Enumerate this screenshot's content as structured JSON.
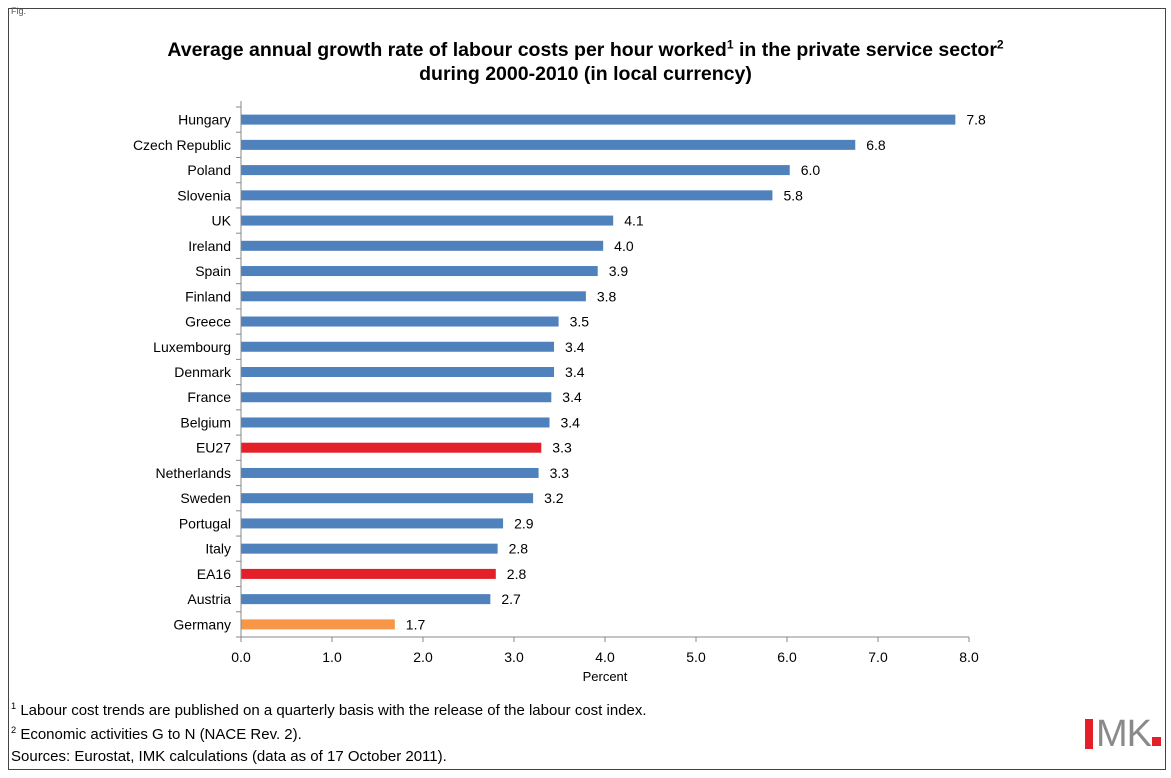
{
  "corner_label": "Fig.",
  "title_line1_pre": "Average annual growth rate of labour costs per hour worked",
  "title_sup1": "1",
  "title_line1_mid": " in the private service sector",
  "title_sup2": "2",
  "title_line2": "during 2000-2010 (in local currency)",
  "chart_data": {
    "type": "bar",
    "orientation": "horizontal",
    "categories": [
      "Hungary",
      "Czech Republic",
      "Poland",
      "Slovenia",
      "UK",
      "Ireland",
      "Spain",
      "Finland",
      "Greece",
      "Luxembourg",
      "Denmark",
      "France",
      "Belgium",
      "EU27",
      "Netherlands",
      "Sweden",
      "Portugal",
      "Italy",
      "EA16",
      "Austria",
      "Germany"
    ],
    "values": [
      7.85,
      6.75,
      6.03,
      5.84,
      4.09,
      3.98,
      3.92,
      3.79,
      3.49,
      3.44,
      3.44,
      3.41,
      3.39,
      3.3,
      3.27,
      3.21,
      2.88,
      2.82,
      2.8,
      2.74,
      1.69
    ],
    "labels": [
      "7.8",
      "6.8",
      "6.0",
      "5.8",
      "4.1",
      "4.0",
      "3.9",
      "3.8",
      "3.5",
      "3.4",
      "3.4",
      "3.4",
      "3.4",
      "3.3",
      "3.3",
      "3.2",
      "2.9",
      "2.8",
      "2.8",
      "2.7",
      "1.7"
    ],
    "colors": [
      "#4f81bd",
      "#4f81bd",
      "#4f81bd",
      "#4f81bd",
      "#4f81bd",
      "#4f81bd",
      "#4f81bd",
      "#4f81bd",
      "#4f81bd",
      "#4f81bd",
      "#4f81bd",
      "#4f81bd",
      "#4f81bd",
      "#e3202a",
      "#4f81bd",
      "#4f81bd",
      "#4f81bd",
      "#4f81bd",
      "#e3202a",
      "#4f81bd",
      "#f79646"
    ],
    "xlabel": "Percent",
    "xlim": [
      0,
      8
    ],
    "xticks": [
      "0.0",
      "1.0",
      "2.0",
      "3.0",
      "4.0",
      "5.0",
      "6.0",
      "7.0",
      "8.0"
    ],
    "grid": false,
    "legend": "none"
  },
  "footnotes": [
    {
      "sup": "1",
      "text": " Labour cost trends are published on a quarterly basis with the release of the labour cost index."
    },
    {
      "sup": "2",
      "text": " Economic activities G to N (NACE Rev. 2)."
    },
    {
      "sup": "",
      "text": "Sources: Eurostat, IMK calculations (data as of 17 October 2011)."
    }
  ],
  "logo": {
    "text": "MK"
  }
}
